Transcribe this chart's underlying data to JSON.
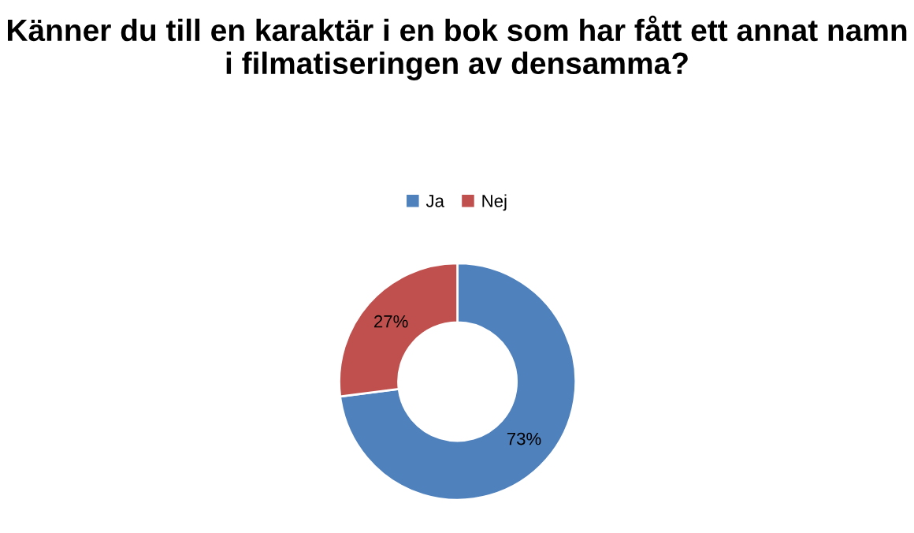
{
  "chart_data": {
    "type": "donut",
    "title": "Känner du till en karaktär i en bok som har fått ett annat namn i filmatiseringen av densamma?",
    "categories": [
      "Ja",
      "Nej"
    ],
    "values": [
      73,
      27
    ],
    "colors": [
      "#4f81bd",
      "#c0504d"
    ],
    "value_labels": [
      "73%",
      "27%"
    ],
    "legend": "top"
  }
}
